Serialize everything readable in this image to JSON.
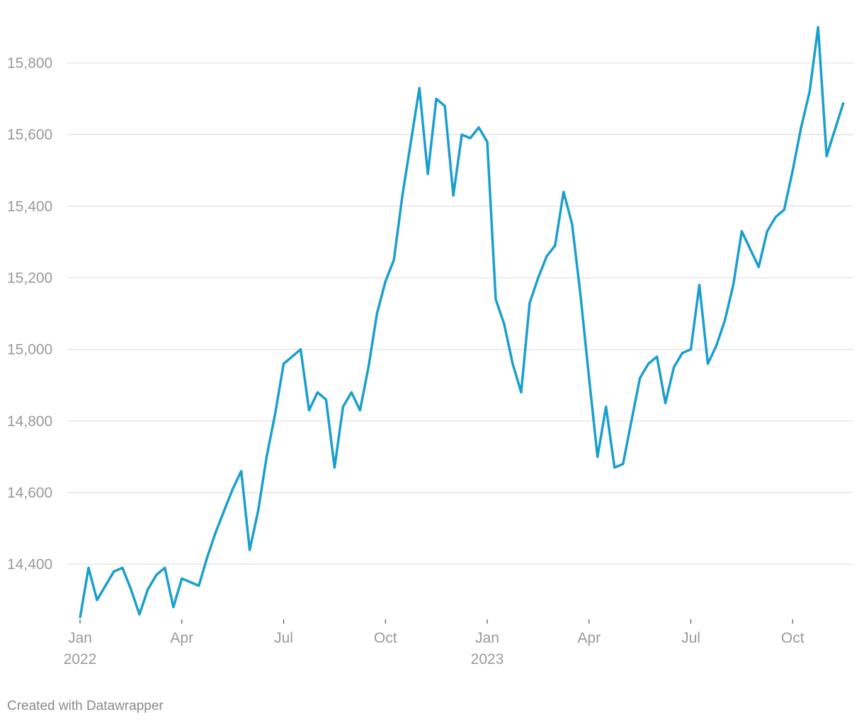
{
  "chart_data": {
    "type": "line",
    "credit": "Created with Datawrapper",
    "x": [
      "2022-01",
      "2022-01",
      "2022-01",
      "2022-01",
      "2022-02",
      "2022-02",
      "2022-02",
      "2022-02",
      "2022-03",
      "2022-03",
      "2022-03",
      "2022-03",
      "2022-04",
      "2022-04",
      "2022-04",
      "2022-04",
      "2022-05",
      "2022-05",
      "2022-05",
      "2022-05",
      "2022-06",
      "2022-06",
      "2022-06",
      "2022-06",
      "2022-07",
      "2022-07",
      "2022-07",
      "2022-07",
      "2022-08",
      "2022-08",
      "2022-08",
      "2022-08",
      "2022-09",
      "2022-09",
      "2022-09",
      "2022-09",
      "2022-10",
      "2022-10",
      "2022-10",
      "2022-10",
      "2022-11",
      "2022-11",
      "2022-11",
      "2022-11",
      "2022-12",
      "2022-12",
      "2022-12",
      "2022-12",
      "2023-01",
      "2023-01",
      "2023-01",
      "2023-01",
      "2023-02",
      "2023-02",
      "2023-02",
      "2023-02",
      "2023-03",
      "2023-03",
      "2023-03",
      "2023-03",
      "2023-04",
      "2023-04",
      "2023-04",
      "2023-04",
      "2023-05",
      "2023-05",
      "2023-05",
      "2023-05",
      "2023-06",
      "2023-06",
      "2023-06",
      "2023-06",
      "2023-07",
      "2023-07",
      "2023-07",
      "2023-07",
      "2023-08",
      "2023-08",
      "2023-08",
      "2023-08",
      "2023-09",
      "2023-09",
      "2023-09",
      "2023-09",
      "2023-10",
      "2023-10",
      "2023-10",
      "2023-10",
      "2023-11",
      "2023-11"
    ],
    "series": [
      {
        "color": "#1a9fcd",
        "values": [
          14250,
          14390,
          14300,
          14340,
          14380,
          14390,
          14330,
          14260,
          14330,
          14370,
          14390,
          14280,
          14360,
          14350,
          14340,
          14420,
          14490,
          14550,
          14610,
          14660,
          14440,
          14550,
          14700,
          14820,
          14960,
          14980,
          15000,
          14830,
          14880,
          14860,
          14670,
          14840,
          14880,
          14830,
          14950,
          15100,
          15190,
          15250,
          15430,
          15580,
          15730,
          15490,
          15700,
          15680,
          15430,
          15600,
          15590,
          15620,
          15580,
          15140,
          15070,
          14960,
          14880,
          15130,
          15200,
          15260,
          15290,
          15440,
          15350,
          15150,
          14920,
          14700,
          14840,
          14670,
          14680,
          14800,
          14920,
          14960,
          14980,
          14850,
          14950,
          14990,
          15000,
          15180,
          14960,
          15010,
          15080,
          15180,
          15330,
          15280,
          15230,
          15330,
          15370,
          15390,
          15500,
          15620,
          15720,
          15900,
          15540,
          15690
        ]
      }
    ],
    "ylim": [
      14246,
      15976
    ],
    "yticks": [
      {
        "value": 14400,
        "label": "14,400"
      },
      {
        "value": 14600,
        "label": "14,600"
      },
      {
        "value": 14800,
        "label": "14,800"
      },
      {
        "value": 15000,
        "label": "15,000"
      },
      {
        "value": 15200,
        "label": "15,200"
      },
      {
        "value": 15400,
        "label": "15,400"
      },
      {
        "value": 15600,
        "label": "15,600"
      },
      {
        "value": 15800,
        "label": "15,800"
      }
    ],
    "xlim": [
      "2022-01",
      "2023-12"
    ],
    "xticks": [
      {
        "value": "2022-01",
        "label": "Jan",
        "year": "2022"
      },
      {
        "value": "2022-04",
        "label": "Apr"
      },
      {
        "value": "2022-07",
        "label": "Jul"
      },
      {
        "value": "2022-10",
        "label": "Oct"
      },
      {
        "value": "2023-01",
        "label": "Jan",
        "year": "2023"
      },
      {
        "value": "2023-04",
        "label": "Apr"
      },
      {
        "value": "2023-07",
        "label": "Jul"
      },
      {
        "value": "2023-10",
        "label": "Oct"
      }
    ],
    "grid": true
  }
}
